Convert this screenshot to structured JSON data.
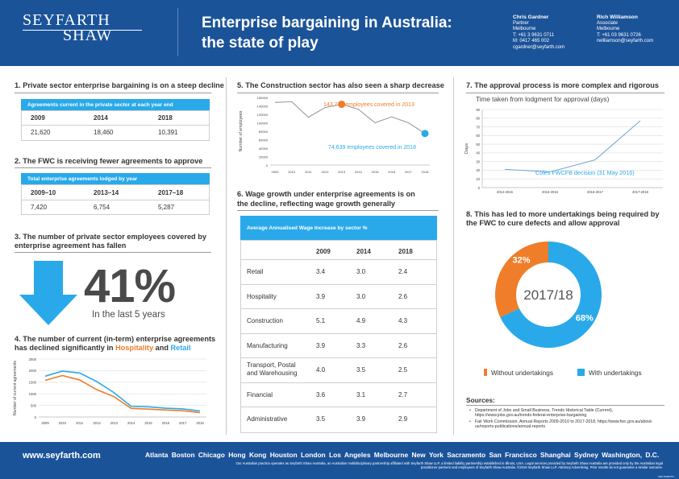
{
  "header": {
    "logo_line1": "SEYFARTH",
    "logo_line2": "SHAW",
    "title_line1": "Enterprise bargaining in Australia:",
    "title_line2": "the state of play",
    "contacts": [
      {
        "name": "Chris Gardner",
        "role": "Partner",
        "city": "Melbourne",
        "phone": "T: +61 3 9631 0711",
        "mobile": "M: 0417 465 002",
        "email": "cgardner@seyfarth.com"
      },
      {
        "name": "Rich Williamson",
        "role": "Associate",
        "city": "Melbourne",
        "phone": "T: +61 03 9631 0726",
        "email": "rwilliamson@seyfarth.com"
      }
    ]
  },
  "section1": {
    "heading": "1. Private sector enterprise bargaining is on a steep decline",
    "table_title": "Agreements current in the private sector at each year end",
    "columns": [
      "2009",
      "2014",
      "2018"
    ],
    "values": [
      "21,620",
      "18,460",
      "10,391"
    ]
  },
  "section2": {
    "heading": "2. The FWC is receiving fewer agreements to approve",
    "table_title": "Total enterprise agreements lodged by year",
    "columns": [
      "2009–10",
      "2013–14",
      "2017–18"
    ],
    "values": [
      "7,420",
      "6,754",
      "5,287"
    ]
  },
  "section3": {
    "heading_line1": "3. The number of private sector employees covered by",
    "heading_line2": "enterprise agreement has fallen",
    "big_number": "41%",
    "caption": "In the last 5 years"
  },
  "section4": {
    "heading_line1": "4. The number of current (in-term) enterprise agreements",
    "heading_line2_prefix": "has declined significantly in ",
    "highlight1": "Hospitality",
    "and": " and ",
    "highlight2": "Retail"
  },
  "section5": {
    "heading": "5. The Construction sector has also seen a sharp decrease"
  },
  "section6": {
    "heading_line1": "6. Wage growth under enterprise agreements is on",
    "heading_line2": "the decline, reflecting wage growth generally",
    "table_title": "Average Annualised Wage Increase by sector %",
    "columns": [
      "2009",
      "2014",
      "2018"
    ],
    "rows": [
      {
        "sector": "Retail",
        "values": [
          "3.4",
          "3.0",
          "2.4"
        ]
      },
      {
        "sector": "Hospitality",
        "values": [
          "3.9",
          "3.0",
          "2.6"
        ]
      },
      {
        "sector": "Construction",
        "values": [
          "5.1",
          "4.9",
          "4.3"
        ]
      },
      {
        "sector": "Manufacturing",
        "values": [
          "3.9",
          "3.3",
          "2.6"
        ]
      },
      {
        "sector": "Transport, Postal and Warehousing",
        "values": [
          "4.0",
          "3.5",
          "2.5"
        ]
      },
      {
        "sector": "Financial",
        "values": [
          "3.6",
          "3.1",
          "2.7"
        ]
      },
      {
        "sector": "Administrative",
        "values": [
          "3.5",
          "3.9",
          "2.9"
        ]
      }
    ]
  },
  "section7": {
    "heading": "7. The approval process is more complex and rigorous"
  },
  "section8": {
    "heading_line1": "8. This has led to more undertakings being required by",
    "heading_line2": "the FWC to cure defects and allow approval"
  },
  "sources": {
    "heading": "Sources:",
    "items": [
      "Department of Jobs and Small Business, Trends Historical Table (Current), https://www.jobs.gov.au/trends-federal-enterprise-bargaining",
      "Fair Work Commission, Annual Reports 2009-2010 to 2017-2018, https://www.fwc.gov.au/about-us/reports-publications/annual-reports"
    ]
  },
  "footer": {
    "url": "www.seyfarth.com",
    "cities": "Atlanta  Boston  Chicago  Hong Kong  Houston  London  Los Angeles  Melbourne  New York  Sacramento  San Francisco  Shanghai  Sydney  Washington, D.C.",
    "note": "Our Australian practice operates as Seyfarth Shaw Australia, an Australian multidisciplinary partnership affiliated with Seyfarth Shaw LLP, a limited liability partnership established in Illinois, USA. Legal services provided by Seyfarth Shaw Australia are provided only by the Australian legal practitioner partners and employees of Seyfarth Shaw Australia. ©2019 Seyfarth Shaw LLP. Attorney Advertising. Prior results do not guarantee a similar outcome.",
    "code": "SS#-19032707"
  },
  "colors": {
    "navy": "#1b5399",
    "blue": "#29a9ea",
    "orange": "#ef7d29",
    "grey": "#999999"
  },
  "chart_data": [
    {
      "id": "section4-chart",
      "type": "line",
      "ylabel": "Number of current agreements",
      "x": [
        "2009",
        "2010",
        "2011",
        "2012",
        "2013",
        "2014",
        "2015",
        "2016",
        "2017",
        "2018"
      ],
      "yticks": [
        "2500",
        "2000",
        "1500",
        "1000",
        "500",
        "0"
      ],
      "ylim": [
        0,
        2500
      ],
      "series": [
        {
          "name": "Hospitality",
          "color": "#ef7d29",
          "values": [
            1580,
            1790,
            1600,
            1180,
            880,
            370,
            340,
            300,
            270,
            190
          ]
        },
        {
          "name": "Retail",
          "color": "#29a9ea",
          "values": [
            1760,
            1980,
            1900,
            1530,
            1050,
            460,
            440,
            380,
            350,
            260
          ]
        }
      ]
    },
    {
      "id": "section5-chart",
      "type": "line",
      "ylabel": "Number of employees",
      "x": [
        "2009",
        "2010",
        "2011",
        "2012",
        "2013",
        "2014",
        "2015",
        "2016",
        "2017",
        "2018"
      ],
      "yticks": [
        "160000",
        "140000",
        "120000",
        "100000",
        "80000",
        "60000",
        "40000",
        "20000",
        "0"
      ],
      "ylim": [
        0,
        160000
      ],
      "series": [
        {
          "name": "Construction",
          "color": "#999999",
          "values": [
            148000,
            150000,
            113000,
            136000,
            143776,
            132000,
            100000,
            114000,
            100000,
            74639
          ]
        }
      ],
      "annotations": [
        {
          "text": "143,776 employees covered in 2013",
          "color": "#ef7d29",
          "x": "2013"
        },
        {
          "text": "74,639 employees covered in 2018",
          "color": "#29a9ea",
          "x": "2018"
        }
      ]
    },
    {
      "id": "section7-chart",
      "type": "line",
      "title": "Time taken from lodgment for approval (days)",
      "ylabel": "Days",
      "x": [
        "2014-2015",
        "2015-2016",
        "2016-2017",
        "2017-2018"
      ],
      "yticks": [
        "90",
        "80",
        "70",
        "60",
        "50",
        "40",
        "30",
        "20",
        "10",
        "0"
      ],
      "ylim": [
        0,
        90
      ],
      "series": [
        {
          "name": "Days",
          "color": "#7aa7d6",
          "values": [
            21,
            18,
            32,
            77
          ]
        }
      ],
      "annotations": [
        {
          "text": "Coles FWCFB decision (31 May 2016)",
          "color": "#29a9ea",
          "x": "2015-2016"
        }
      ]
    },
    {
      "id": "section8-chart",
      "type": "pie",
      "center_label": "2017/18",
      "slices": [
        {
          "label": "Without undertakings",
          "value": 32,
          "display": "32%",
          "color": "#ef7d29"
        },
        {
          "label": "With undertakings",
          "value": 68,
          "display": "68%",
          "color": "#29a9ea"
        }
      ]
    }
  ]
}
